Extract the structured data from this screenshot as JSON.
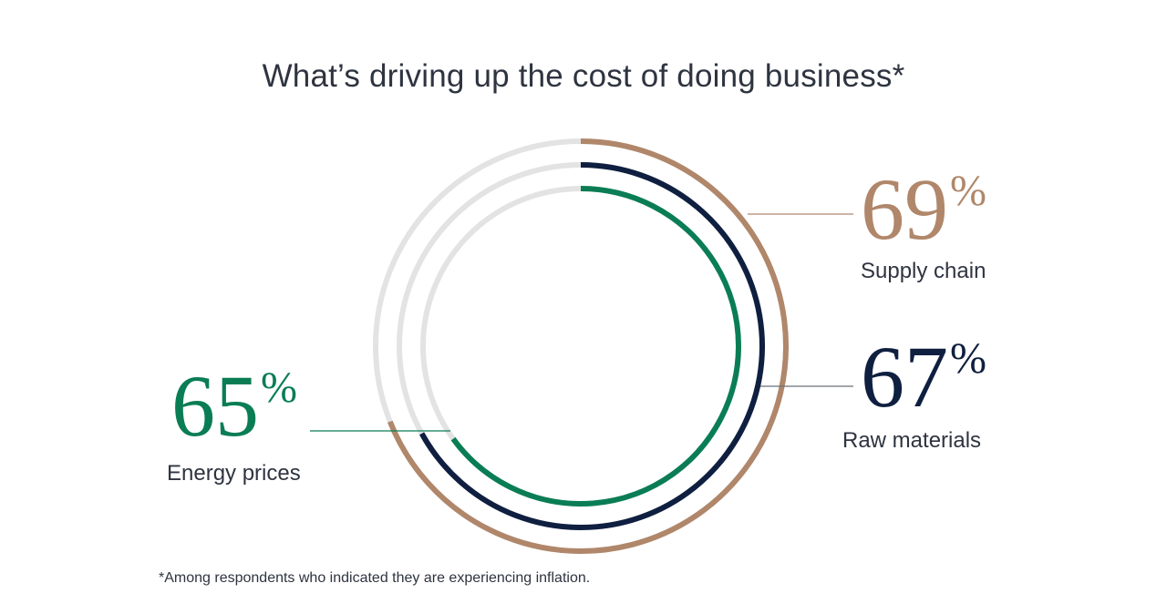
{
  "title": "What’s driving up the cost of doing business*",
  "footnote": "*Among respondents who indicated they are experiencing inflation.",
  "colors": {
    "track": "#e3e3e3",
    "supply_chain": "#b0876a",
    "raw_materials": "#0f1f40",
    "energy_prices": "#0a7d55",
    "text": "#2e3440"
  },
  "chart_data": {
    "type": "radial-bar",
    "unit": "%",
    "series": [
      {
        "name": "Supply chain",
        "value": 69,
        "display": "69",
        "color": "#b0876a"
      },
      {
        "name": "Raw materials",
        "value": 67,
        "display": "67",
        "color": "#0f1f40"
      },
      {
        "name": "Energy prices",
        "value": 65,
        "display": "65",
        "color": "#0a7d55"
      }
    ],
    "max": 100
  }
}
